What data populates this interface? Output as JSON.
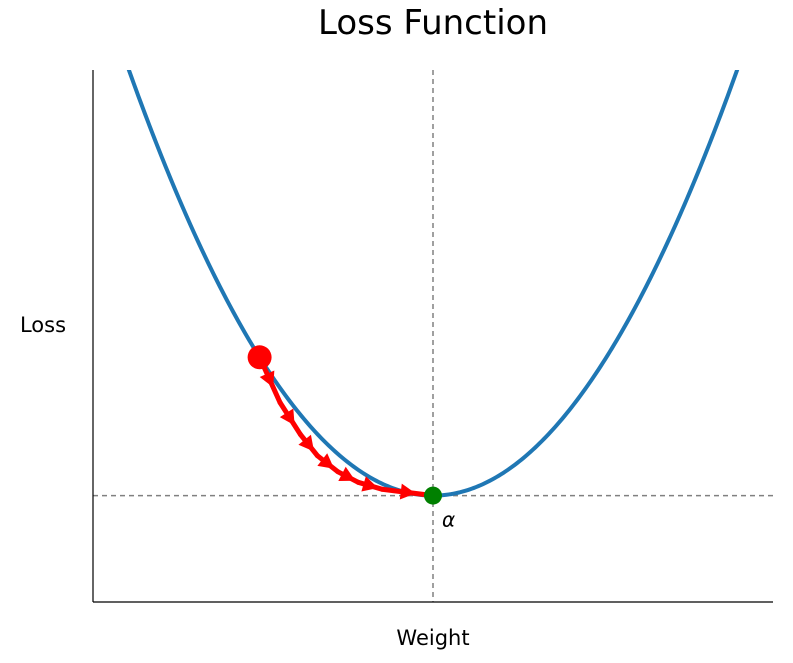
{
  "chart_data": {
    "type": "line",
    "title": "Loss Function",
    "xlabel": "Weight",
    "ylabel": "Loss",
    "xlim": [
      -1.0,
      1.0
    ],
    "ylim": [
      -0.2,
      0.8
    ],
    "grid": false,
    "series": [
      {
        "color": "#1f77b4",
        "function": "x^2"
      }
    ],
    "descent_path": {
      "color": "#ff0000",
      "x": [
        -0.51,
        -0.45,
        -0.39,
        -0.34,
        -0.28,
        -0.22,
        -0.15,
        0.0
      ],
      "y": [
        0.26,
        0.175,
        0.115,
        0.075,
        0.045,
        0.025,
        0.012,
        0.0
      ]
    },
    "start_point": {
      "x": -0.51,
      "y": 0.26,
      "color": "#ff0000"
    },
    "minimum_point": {
      "x": 0.0,
      "y": 0.0,
      "color": "#008000"
    },
    "reference_lines": {
      "x": 0.0,
      "y": 0.0,
      "color": "#808080",
      "style": "dashed"
    },
    "annotation": {
      "text": "α",
      "x": 0.0,
      "y": 0.0
    }
  }
}
